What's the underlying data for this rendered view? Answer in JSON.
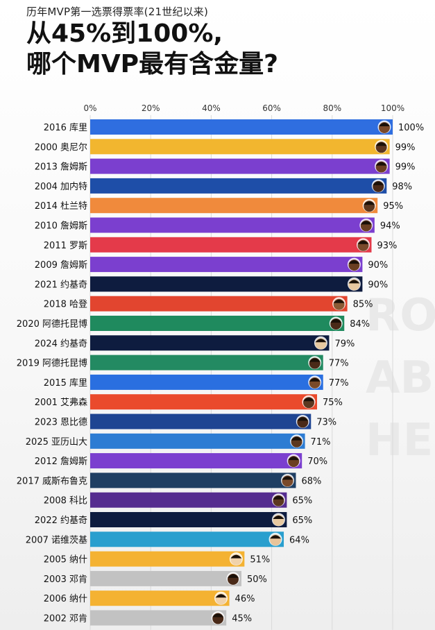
{
  "header": {
    "subtitle": "历年MVP第一选票得票率(21世纪以来)",
    "title_line1": "从45%到100%,",
    "title_line2": "哪个MVP最有含金量?"
  },
  "chart_data": {
    "type": "bar",
    "orientation": "horizontal",
    "title": "历年MVP第一选票得票率(21世纪以来)",
    "xlim": [
      0,
      100
    ],
    "x_ticks": [
      "0%",
      "20%",
      "40%",
      "60%",
      "80%",
      "100%"
    ],
    "categories": [
      "2016 库里",
      "2000 奥尼尔",
      "2013 詹姆斯",
      "2004 加内特",
      "2014 杜兰特",
      "2010 詹姆斯",
      "2011 罗斯",
      "2009 詹姆斯",
      "2021 约基奇",
      "2018 哈登",
      "2020 阿德托昆博",
      "2024 约基奇",
      "2019 阿德托昆博",
      "2015 库里",
      "2001 艾弗森",
      "2023 恩比德",
      "2025 亚历山大",
      "2012 詹姆斯",
      "2017 威斯布鲁克",
      "2008 科比",
      "2022 约基奇",
      "2007 诺维茨基",
      "2005 纳什",
      "2003 邓肯",
      "2006 纳什",
      "2002 邓肯"
    ],
    "values": [
      100,
      99,
      99,
      98,
      95,
      94,
      93,
      90,
      90,
      85,
      84,
      79,
      77,
      77,
      75,
      73,
      71,
      70,
      68,
      65,
      65,
      64,
      51,
      50,
      46,
      45
    ],
    "value_labels": [
      "100%",
      "99%",
      "99%",
      "98%",
      "95%",
      "94%",
      "93%",
      "90%",
      "90%",
      "85%",
      "84%",
      "79%",
      "77%",
      "77%",
      "75%",
      "73%",
      "71%",
      "70%",
      "68%",
      "65%",
      "65%",
      "64%",
      "51%",
      "50%",
      "46%",
      "45%"
    ],
    "bar_colors": [
      "#2f6ee0",
      "#f2b62f",
      "#7b3fcf",
      "#1e4ea8",
      "#f08a3c",
      "#7b3fcf",
      "#e43a4a",
      "#7b3fcf",
      "#0e1c3f",
      "#e2452f",
      "#1f8a5e",
      "#0e1c3f",
      "#238a62",
      "#2a6fe0",
      "#ea4a2c",
      "#1f4592",
      "#2d7cd3",
      "#7b3fcf",
      "#1f3f63",
      "#552c8f",
      "#0e1c3f",
      "#2a9fce",
      "#f4b232",
      "#c2c2c2",
      "#f4b232",
      "#c2c2c2"
    ],
    "avatar_skin": [
      "#7a4a2a",
      "#5a3520",
      "#6b3f22",
      "#4a2a18",
      "#5c3820",
      "#6b3f22",
      "#7a4a2a",
      "#6b3f22",
      "#e8c9a0",
      "#8a5a35",
      "#4a2a18",
      "#e8c9a0",
      "#4a2a18",
      "#7a4a2a",
      "#5c3820",
      "#4a2a18",
      "#5c3820",
      "#6b3f22",
      "#7a4a2a",
      "#5c3820",
      "#e8c9a0",
      "#e8c49a",
      "#f0d2aa",
      "#4a2a18",
      "#f0d2aa",
      "#4a2a18"
    ],
    "grid": true,
    "legend": "none"
  },
  "watermark": "ROS ABI HERO"
}
